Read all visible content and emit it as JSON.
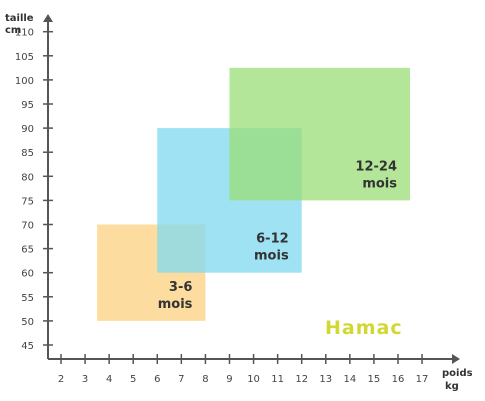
{
  "chart_data": {
    "type": "area",
    "title": "",
    "xlabel": [
      "poids",
      "kg"
    ],
    "ylabel": [
      "taille",
      "cm"
    ],
    "x_ticks": [
      2,
      3,
      4,
      5,
      6,
      7,
      8,
      9,
      10,
      11,
      12,
      13,
      14,
      15,
      16,
      17
    ],
    "y_ticks": [
      45,
      50,
      55,
      60,
      65,
      70,
      75,
      80,
      85,
      90,
      95,
      100,
      105,
      110
    ],
    "xlim": [
      1.5,
      17.5
    ],
    "ylim": [
      42,
      115
    ],
    "grid": false,
    "legend": "none",
    "series": [
      {
        "name": "3-6 mois",
        "label_lines": [
          "3-6",
          "mois"
        ],
        "x_range": [
          3.5,
          8
        ],
        "y_range": [
          50,
          70
        ],
        "color": "#fcd27f",
        "opacity": 0.75
      },
      {
        "name": "6-12 mois",
        "label_lines": [
          "6-12",
          "mois"
        ],
        "x_range": [
          6,
          12
        ],
        "y_range": [
          60,
          90
        ],
        "color": "#7fd8f0",
        "opacity": 0.75
      },
      {
        "name": "12-24 mois",
        "label_lines": [
          "12-24",
          "mois"
        ],
        "x_range": [
          9,
          16.5
        ],
        "y_range": [
          75,
          102.5
        ],
        "color": "#99dd77",
        "opacity": 0.75
      }
    ]
  },
  "brand": {
    "text": "Hamac",
    "color": "#d2d832"
  },
  "colors": {
    "axis": "#555555"
  }
}
